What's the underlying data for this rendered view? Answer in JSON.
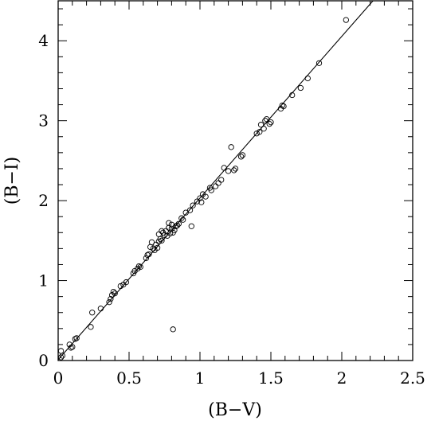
{
  "chart_data": {
    "type": "scatter",
    "title": "",
    "xlabel": "(B−V)",
    "ylabel": "(B−I)",
    "xlim": [
      0,
      2.5
    ],
    "ylim": [
      0,
      4.5
    ],
    "xticks": [
      0,
      0.5,
      1,
      1.5,
      2,
      2.5
    ],
    "xtick_labels": [
      "0",
      "0.5",
      "1",
      "1.5",
      "2",
      "2.5"
    ],
    "yticks": [
      0,
      1,
      2,
      3,
      4
    ],
    "ytick_labels": [
      "0",
      "1",
      "2",
      "3",
      "4"
    ],
    "grid": false,
    "fit_line": {
      "x": [
        0,
        2.22
      ],
      "y": [
        0.01,
        4.5
      ]
    },
    "series": [
      {
        "marker": "open-circle",
        "x": [
          0.02,
          0.02,
          0.03,
          0.08,
          0.09,
          0.1,
          0.12,
          0.13,
          0.23,
          0.24,
          0.3,
          0.36,
          0.37,
          0.38,
          0.39,
          0.4,
          0.44,
          0.46,
          0.48,
          0.53,
          0.54,
          0.56,
          0.57,
          0.58,
          0.62,
          0.63,
          0.64,
          0.65,
          0.66,
          0.67,
          0.68,
          0.69,
          0.7,
          0.71,
          0.71,
          0.72,
          0.73,
          0.73,
          0.74,
          0.75,
          0.76,
          0.77,
          0.78,
          0.78,
          0.79,
          0.8,
          0.8,
          0.81,
          0.82,
          0.83,
          0.84,
          0.85,
          0.87,
          0.88,
          0.9,
          0.93,
          0.95,
          0.98,
          1.0,
          1.01,
          1.02,
          1.04,
          1.07,
          1.08,
          1.11,
          1.13,
          1.15,
          1.17,
          1.2,
          1.24,
          1.25,
          1.29,
          1.3,
          1.4,
          1.42,
          1.43,
          1.45,
          1.46,
          1.47,
          1.49,
          1.5,
          1.57,
          1.58,
          1.59,
          1.65,
          1.71,
          1.76,
          1.84,
          2.03,
          0.81,
          1.22,
          0.94
        ],
        "y": [
          0.12,
          0.04,
          0.06,
          0.2,
          0.16,
          0.17,
          0.27,
          0.28,
          0.42,
          0.6,
          0.65,
          0.73,
          0.77,
          0.82,
          0.86,
          0.84,
          0.93,
          0.95,
          0.98,
          1.09,
          1.12,
          1.15,
          1.18,
          1.17,
          1.28,
          1.32,
          1.33,
          1.42,
          1.48,
          1.4,
          1.38,
          1.45,
          1.41,
          1.49,
          1.58,
          1.52,
          1.5,
          1.62,
          1.6,
          1.57,
          1.62,
          1.56,
          1.66,
          1.72,
          1.59,
          1.65,
          1.7,
          1.6,
          1.63,
          1.68,
          1.69,
          1.71,
          1.78,
          1.76,
          1.85,
          1.88,
          1.94,
          1.99,
          2.03,
          1.98,
          2.08,
          2.05,
          2.16,
          2.13,
          2.18,
          2.22,
          2.26,
          2.41,
          2.37,
          2.38,
          2.4,
          2.55,
          2.57,
          2.84,
          2.86,
          2.95,
          2.9,
          3.0,
          3.02,
          2.96,
          2.98,
          3.15,
          3.19,
          3.18,
          3.32,
          3.41,
          3.53,
          3.72,
          4.26,
          0.39,
          2.67,
          1.68
        ]
      }
    ]
  }
}
